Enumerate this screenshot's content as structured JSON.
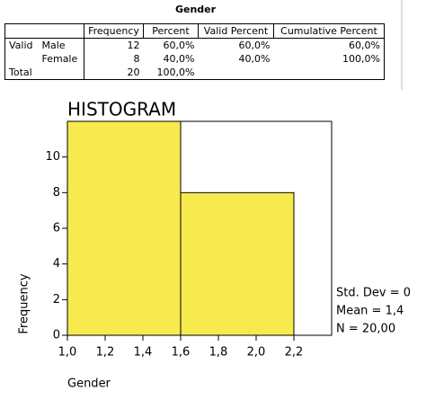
{
  "table": {
    "title": "Gender",
    "header": [
      "Frequency",
      "Percent",
      "Valid Percent",
      "Cumulative Percent"
    ],
    "rows": [
      [
        "Valid",
        "Male",
        "12",
        "60,0%",
        "60,0%",
        "60,0%"
      ],
      [
        null,
        "Female",
        "8",
        "40,0%",
        "40,0%",
        "100,0%"
      ],
      [
        "Total",
        null,
        "20",
        "100,0%",
        null,
        null
      ]
    ]
  },
  "chart_data": {
    "type": "histogram",
    "title": "HISTOGRAM",
    "x_label": "Gender",
    "y_label": "Frequency",
    "bins": [
      1.0,
      1.6,
      2.2
    ],
    "counts": [
      12,
      8
    ],
    "color": "#f7ea4f",
    "xlim": [
      1.0,
      2.4
    ],
    "ylim": [
      0,
      12
    ],
    "xticks": [
      {
        "value": 1.0,
        "label": "1,0"
      },
      {
        "value": 1.2,
        "label": "1,2"
      },
      {
        "value": 1.4,
        "label": "1,4"
      },
      {
        "value": 1.6,
        "label": "1,6"
      },
      {
        "value": 1.8,
        "label": "1,8"
      },
      {
        "value": 2.0,
        "label": "2,0"
      },
      {
        "value": 2.2,
        "label": "2,2"
      }
    ],
    "yticks": [
      0,
      2,
      4,
      6,
      8,
      10
    ],
    "stats": [
      "Std. Dev = 0",
      "Mean = 1,4",
      "N = 20,00"
    ]
  }
}
